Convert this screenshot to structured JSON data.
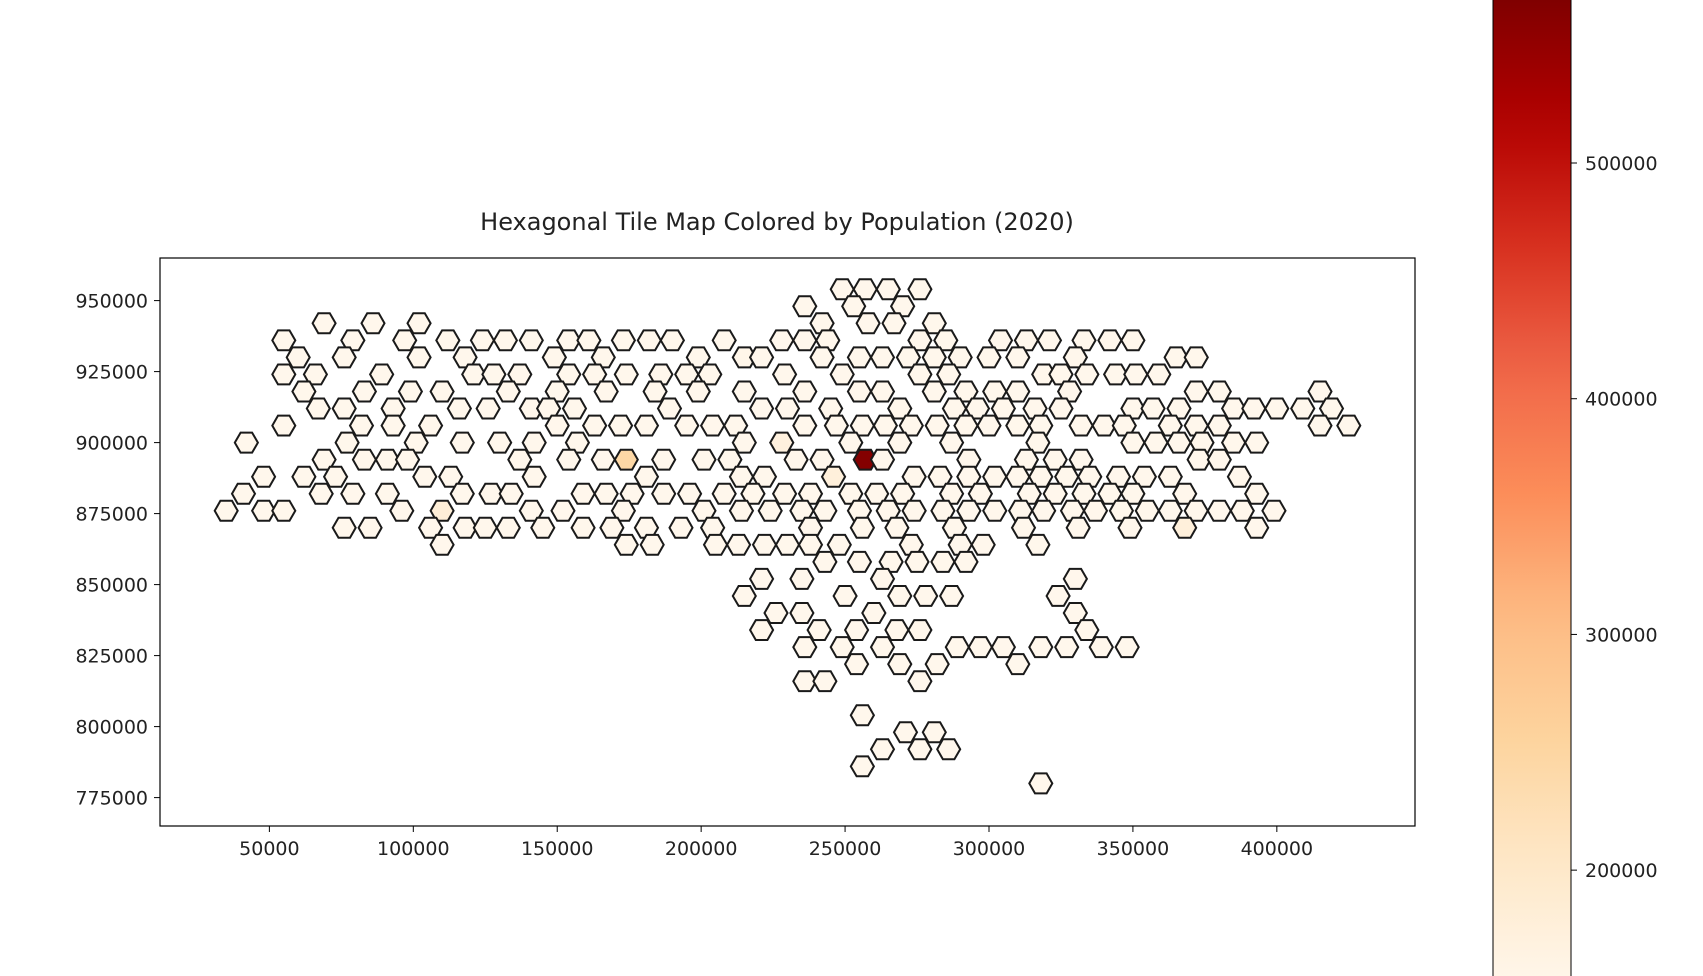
{
  "chart_data": {
    "type": "hexagonal-tile-map",
    "title": "Hexagonal Tile Map Colored by Population (2020)",
    "xlim": [
      12000,
      448000
    ],
    "ylim": [
      765000,
      965000
    ],
    "x_ticks": [
      50000,
      100000,
      150000,
      200000,
      250000,
      300000,
      350000,
      400000
    ],
    "x_tick_labels": [
      "50000",
      "100000",
      "150000",
      "200000",
      "250000",
      "300000",
      "350000",
      "400000"
    ],
    "y_ticks": [
      775000,
      800000,
      825000,
      850000,
      875000,
      900000,
      925000,
      950000
    ],
    "y_tick_labels": [
      "775000",
      "800000",
      "825000",
      "850000",
      "875000",
      "900000",
      "925000",
      "950000"
    ],
    "colorbar": {
      "colormap": "OrRd",
      "range": [
        150000,
        570000
      ],
      "ticks": [
        200000,
        300000,
        400000,
        500000
      ],
      "tick_labels": [
        "200000",
        "300000",
        "400000",
        "500000"
      ],
      "colors": [
        "#fff7ec",
        "#fee8c8",
        "#fdd49e",
        "#fdbb84",
        "#fc8d59",
        "#ef6548",
        "#d7301f",
        "#b30000",
        "#7f0000"
      ]
    },
    "hex_size_units": 4000,
    "default_population": 0,
    "tiles": [
      [
        249000,
        954000
      ],
      [
        257000,
        954000
      ],
      [
        265000,
        954000
      ],
      [
        276000,
        954000
      ],
      [
        236000,
        948000
      ],
      [
        253000,
        948000
      ],
      [
        270000,
        948000
      ],
      [
        69000,
        942000
      ],
      [
        86000,
        942000
      ],
      [
        102000,
        942000
      ],
      [
        242000,
        942000
      ],
      [
        258000,
        942000
      ],
      [
        267000,
        942000
      ],
      [
        281000,
        942000
      ],
      [
        55000,
        936000
      ],
      [
        79000,
        936000
      ],
      [
        97000,
        936000
      ],
      [
        112000,
        936000
      ],
      [
        124000,
        936000
      ],
      [
        132000,
        936000
      ],
      [
        141000,
        936000
      ],
      [
        154000,
        936000
      ],
      [
        161000,
        936000
      ],
      [
        173000,
        936000
      ],
      [
        182000,
        936000
      ],
      [
        190000,
        936000
      ],
      [
        208000,
        936000
      ],
      [
        228000,
        936000
      ],
      [
        236000,
        936000
      ],
      [
        244000,
        936000
      ],
      [
        276000,
        936000
      ],
      [
        285000,
        936000
      ],
      [
        304000,
        936000
      ],
      [
        313000,
        936000
      ],
      [
        321000,
        936000
      ],
      [
        333000,
        936000
      ],
      [
        342000,
        936000
      ],
      [
        350000,
        936000
      ],
      [
        60000,
        930000
      ],
      [
        76000,
        930000
      ],
      [
        102000,
        930000
      ],
      [
        118000,
        930000
      ],
      [
        149000,
        930000
      ],
      [
        166000,
        930000
      ],
      [
        199000,
        930000
      ],
      [
        215000,
        930000,
        155000
      ],
      [
        221000,
        930000
      ],
      [
        242000,
        930000
      ],
      [
        255000,
        930000
      ],
      [
        263000,
        930000
      ],
      [
        272000,
        930000
      ],
      [
        281000,
        930000
      ],
      [
        290000,
        930000
      ],
      [
        300000,
        930000
      ],
      [
        310000,
        930000
      ],
      [
        330000,
        930000
      ],
      [
        365000,
        930000
      ],
      [
        372000,
        930000
      ],
      [
        55000,
        924000
      ],
      [
        66000,
        924000
      ],
      [
        89000,
        924000
      ],
      [
        121000,
        924000
      ],
      [
        128000,
        924000
      ],
      [
        137000,
        924000
      ],
      [
        154000,
        924000
      ],
      [
        163000,
        924000
      ],
      [
        174000,
        924000
      ],
      [
        186000,
        924000
      ],
      [
        195000,
        924000
      ],
      [
        203000,
        924000
      ],
      [
        229000,
        924000
      ],
      [
        249000,
        924000
      ],
      [
        276000,
        924000
      ],
      [
        286000,
        924000
      ],
      [
        319000,
        924000
      ],
      [
        325000,
        924000
      ],
      [
        334000,
        924000
      ],
      [
        344000,
        924000
      ],
      [
        351000,
        924000
      ],
      [
        359000,
        924000
      ],
      [
        62000,
        918000
      ],
      [
        83000,
        918000
      ],
      [
        99000,
        918000
      ],
      [
        110000,
        918000
      ],
      [
        133000,
        918000
      ],
      [
        150000,
        918000
      ],
      [
        167000,
        918000
      ],
      [
        184000,
        918000
      ],
      [
        199000,
        918000
      ],
      [
        215000,
        918000
      ],
      [
        236000,
        918000
      ],
      [
        255000,
        918000
      ],
      [
        263000,
        918000
      ],
      [
        281000,
        918000
      ],
      [
        292000,
        918000
      ],
      [
        302000,
        918000
      ],
      [
        310000,
        918000
      ],
      [
        328000,
        918000
      ],
      [
        372000,
        918000
      ],
      [
        380000,
        918000
      ],
      [
        415000,
        918000
      ],
      [
        67000,
        912000
      ],
      [
        76000,
        912000
      ],
      [
        93000,
        912000
      ],
      [
        116000,
        912000
      ],
      [
        126000,
        912000
      ],
      [
        141000,
        912000
      ],
      [
        147000,
        912000
      ],
      [
        156000,
        912000
      ],
      [
        189000,
        912000
      ],
      [
        221000,
        912000
      ],
      [
        230000,
        912000
      ],
      [
        245000,
        912000
      ],
      [
        269000,
        912000
      ],
      [
        288000,
        912000
      ],
      [
        296000,
        912000
      ],
      [
        305000,
        912000
      ],
      [
        316000,
        912000
      ],
      [
        325000,
        912000
      ],
      [
        350000,
        912000
      ],
      [
        357000,
        912000
      ],
      [
        366000,
        912000
      ],
      [
        385000,
        912000
      ],
      [
        392000,
        912000
      ],
      [
        400000,
        912000
      ],
      [
        409000,
        912000
      ],
      [
        419000,
        912000
      ],
      [
        55000,
        906000
      ],
      [
        82000,
        906000
      ],
      [
        93000,
        906000
      ],
      [
        106000,
        906000
      ],
      [
        150000,
        906000
      ],
      [
        163000,
        906000
      ],
      [
        172000,
        906000
      ],
      [
        181000,
        906000
      ],
      [
        195000,
        906000
      ],
      [
        204000,
        906000
      ],
      [
        212000,
        906000
      ],
      [
        236000,
        906000
      ],
      [
        247000,
        906000
      ],
      [
        256000,
        906000
      ],
      [
        264000,
        906000
      ],
      [
        273000,
        906000
      ],
      [
        282000,
        906000
      ],
      [
        292000,
        906000
      ],
      [
        300000,
        906000
      ],
      [
        310000,
        906000
      ],
      [
        318000,
        906000
      ],
      [
        332000,
        906000
      ],
      [
        340000,
        906000
      ],
      [
        347000,
        906000
      ],
      [
        363000,
        906000
      ],
      [
        372000,
        906000
      ],
      [
        380000,
        906000
      ],
      [
        415000,
        906000
      ],
      [
        425000,
        906000
      ],
      [
        42000,
        900000
      ],
      [
        77000,
        900000
      ],
      [
        101000,
        900000
      ],
      [
        117000,
        900000
      ],
      [
        130000,
        900000
      ],
      [
        142000,
        900000
      ],
      [
        157000,
        900000
      ],
      [
        215000,
        900000
      ],
      [
        228000,
        900000,
        170000
      ],
      [
        252000,
        900000
      ],
      [
        269000,
        900000
      ],
      [
        287000,
        900000
      ],
      [
        317000,
        900000
      ],
      [
        350000,
        900000
      ],
      [
        358000,
        900000
      ],
      [
        366000,
        900000
      ],
      [
        374000,
        900000
      ],
      [
        385000,
        900000
      ],
      [
        393000,
        900000
      ],
      [
        69000,
        894000
      ],
      [
        83000,
        894000
      ],
      [
        91000,
        894000
      ],
      [
        98000,
        894000
      ],
      [
        137000,
        894000
      ],
      [
        154000,
        894000
      ],
      [
        166000,
        894000
      ],
      [
        174000,
        894000,
        245000
      ],
      [
        187000,
        894000
      ],
      [
        201000,
        894000
      ],
      [
        210000,
        894000
      ],
      [
        233000,
        894000
      ],
      [
        242000,
        894000
      ],
      [
        257000,
        894000,
        565000
      ],
      [
        263000,
        894000
      ],
      [
        293000,
        894000
      ],
      [
        313000,
        894000
      ],
      [
        323000,
        894000
      ],
      [
        332000,
        894000
      ],
      [
        373000,
        894000
      ],
      [
        380000,
        894000
      ],
      [
        48000,
        888000
      ],
      [
        62000,
        888000
      ],
      [
        73000,
        888000
      ],
      [
        104000,
        888000
      ],
      [
        113000,
        888000
      ],
      [
        142000,
        888000
      ],
      [
        181000,
        888000
      ],
      [
        214000,
        888000
      ],
      [
        222000,
        888000
      ],
      [
        246000,
        888000,
        175000
      ],
      [
        274000,
        888000
      ],
      [
        283000,
        888000
      ],
      [
        293000,
        888000
      ],
      [
        302000,
        888000
      ],
      [
        310000,
        888000
      ],
      [
        318000,
        888000
      ],
      [
        327000,
        888000
      ],
      [
        335000,
        888000
      ],
      [
        345000,
        888000
      ],
      [
        354000,
        888000
      ],
      [
        363000,
        888000
      ],
      [
        387000,
        888000
      ],
      [
        41000,
        882000
      ],
      [
        68000,
        882000
      ],
      [
        79000,
        882000
      ],
      [
        91000,
        882000
      ],
      [
        117000,
        882000
      ],
      [
        127000,
        882000
      ],
      [
        134000,
        882000
      ],
      [
        159000,
        882000
      ],
      [
        167000,
        882000
      ],
      [
        176000,
        882000
      ],
      [
        187000,
        882000
      ],
      [
        196000,
        882000
      ],
      [
        208000,
        882000
      ],
      [
        218000,
        882000
      ],
      [
        229000,
        882000
      ],
      [
        238000,
        882000
      ],
      [
        252000,
        882000
      ],
      [
        261000,
        882000
      ],
      [
        270000,
        882000
      ],
      [
        287000,
        882000
      ],
      [
        297000,
        882000
      ],
      [
        314000,
        882000
      ],
      [
        323000,
        882000
      ],
      [
        333000,
        882000
      ],
      [
        342000,
        882000
      ],
      [
        350000,
        882000
      ],
      [
        368000,
        882000
      ],
      [
        393000,
        882000
      ],
      [
        35000,
        876000
      ],
      [
        48000,
        876000
      ],
      [
        55000,
        876000
      ],
      [
        96000,
        876000
      ],
      [
        110000,
        876000,
        180000
      ],
      [
        141000,
        876000
      ],
      [
        152000,
        876000
      ],
      [
        173000,
        876000
      ],
      [
        201000,
        876000
      ],
      [
        214000,
        876000
      ],
      [
        224000,
        876000
      ],
      [
        235000,
        876000
      ],
      [
        243000,
        876000
      ],
      [
        255000,
        876000
      ],
      [
        265000,
        876000
      ],
      [
        274000,
        876000
      ],
      [
        284000,
        876000
      ],
      [
        293000,
        876000
      ],
      [
        302000,
        876000
      ],
      [
        311000,
        876000
      ],
      [
        319000,
        876000
      ],
      [
        329000,
        876000
      ],
      [
        337000,
        876000
      ],
      [
        346000,
        876000
      ],
      [
        355000,
        876000
      ],
      [
        363000,
        876000
      ],
      [
        372000,
        876000
      ],
      [
        380000,
        876000
      ],
      [
        388000,
        876000
      ],
      [
        399000,
        876000
      ],
      [
        76000,
        870000
      ],
      [
        85000,
        870000
      ],
      [
        106000,
        870000
      ],
      [
        118000,
        870000
      ],
      [
        125000,
        870000
      ],
      [
        133000,
        870000
      ],
      [
        145000,
        870000
      ],
      [
        159000,
        870000
      ],
      [
        169000,
        870000
      ],
      [
        181000,
        870000
      ],
      [
        193000,
        870000
      ],
      [
        204000,
        870000
      ],
      [
        238000,
        870000
      ],
      [
        256000,
        870000
      ],
      [
        268000,
        870000
      ],
      [
        288000,
        870000
      ],
      [
        312000,
        870000
      ],
      [
        331000,
        870000
      ],
      [
        349000,
        870000
      ],
      [
        368000,
        870000,
        175000
      ],
      [
        393000,
        870000
      ],
      [
        110000,
        864000
      ],
      [
        174000,
        864000
      ],
      [
        183000,
        864000
      ],
      [
        205000,
        864000
      ],
      [
        213000,
        864000
      ],
      [
        222000,
        864000
      ],
      [
        230000,
        864000
      ],
      [
        238000,
        864000
      ],
      [
        248000,
        864000
      ],
      [
        273000,
        864000
      ],
      [
        290000,
        864000
      ],
      [
        298000,
        864000
      ],
      [
        317000,
        864000
      ],
      [
        243000,
        858000
      ],
      [
        255000,
        858000
      ],
      [
        266000,
        858000
      ],
      [
        275000,
        858000
      ],
      [
        284000,
        858000
      ],
      [
        292000,
        858000
      ],
      [
        221000,
        852000
      ],
      [
        235000,
        852000
      ],
      [
        263000,
        852000
      ],
      [
        330000,
        852000
      ],
      [
        215000,
        846000
      ],
      [
        250000,
        846000
      ],
      [
        269000,
        846000
      ],
      [
        278000,
        846000
      ],
      [
        287000,
        846000
      ],
      [
        324000,
        846000
      ],
      [
        226000,
        840000
      ],
      [
        235000,
        840000
      ],
      [
        260000,
        840000
      ],
      [
        330000,
        840000
      ],
      [
        221000,
        834000
      ],
      [
        241000,
        834000
      ],
      [
        254000,
        834000
      ],
      [
        268000,
        834000
      ],
      [
        276000,
        834000
      ],
      [
        334000,
        834000
      ],
      [
        236000,
        828000
      ],
      [
        249000,
        828000
      ],
      [
        263000,
        828000
      ],
      [
        289000,
        828000
      ],
      [
        297000,
        828000
      ],
      [
        305000,
        828000
      ],
      [
        318000,
        828000
      ],
      [
        327000,
        828000
      ],
      [
        339000,
        828000
      ],
      [
        348000,
        828000
      ],
      [
        254000,
        822000
      ],
      [
        269000,
        822000
      ],
      [
        282000,
        822000
      ],
      [
        310000,
        822000
      ],
      [
        236000,
        816000
      ],
      [
        243000,
        816000
      ],
      [
        276000,
        816000
      ],
      [
        256000,
        804000
      ],
      [
        271000,
        798000
      ],
      [
        281000,
        798000
      ],
      [
        263000,
        792000
      ],
      [
        276000,
        792000
      ],
      [
        286000,
        792000
      ],
      [
        256000,
        786000
      ],
      [
        318000,
        780000
      ]
    ]
  }
}
